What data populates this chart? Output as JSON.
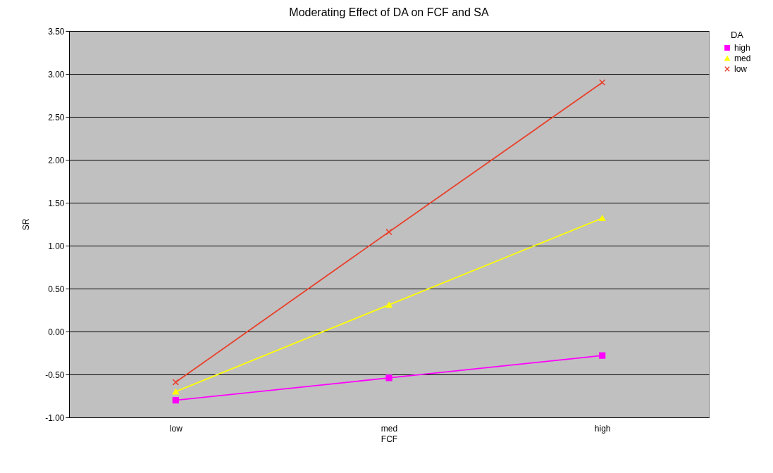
{
  "chart_data": {
    "type": "line",
    "title": "Moderating Effect of DA on FCF and SA",
    "xlabel": "FCF",
    "ylabel": "SR",
    "legend_title": "DA",
    "categories": [
      "low",
      "med",
      "high"
    ],
    "series": [
      {
        "name": "high",
        "color": "#ff00ff",
        "marker": "square",
        "values": [
          -0.8,
          -0.54,
          -0.28
        ]
      },
      {
        "name": "med",
        "color": "#ffff00",
        "marker": "triangle",
        "values": [
          -0.7,
          0.31,
          1.32
        ]
      },
      {
        "name": "low",
        "color": "#e8412c",
        "marker": "cross",
        "values": [
          -0.59,
          1.16,
          2.9
        ]
      }
    ],
    "ylim": [
      -1,
      3.5
    ],
    "yticks": [
      {
        "value": -1,
        "label": "-1.00"
      },
      {
        "value": -0.5,
        "label": "-0.50"
      },
      {
        "value": 0,
        "label": "0.00"
      },
      {
        "value": 0.5,
        "label": "0.50"
      },
      {
        "value": 1,
        "label": "1.00"
      },
      {
        "value": 1.5,
        "label": "1.50"
      },
      {
        "value": 2,
        "label": "2.00"
      },
      {
        "value": 2.5,
        "label": "2.50"
      },
      {
        "value": 3,
        "label": "3.00"
      },
      {
        "value": 3.5,
        "label": "3.50"
      }
    ],
    "grid": "y",
    "legend": "right"
  }
}
